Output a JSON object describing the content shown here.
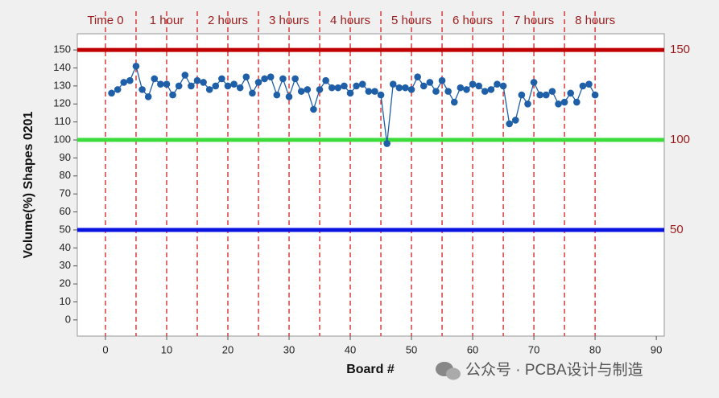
{
  "chart_data": {
    "type": "line",
    "x_label": "Board #",
    "y_label": "Volume(%) Shapes 0201",
    "x": [
      1,
      2,
      3,
      4,
      5,
      6,
      7,
      8,
      9,
      10,
      11,
      12,
      13,
      14,
      15,
      16,
      17,
      18,
      19,
      20,
      21,
      22,
      23,
      24,
      25,
      26,
      27,
      28,
      29,
      30,
      31,
      32,
      33,
      34,
      35,
      36,
      37,
      38,
      39,
      40,
      41,
      42,
      43,
      44,
      45,
      46,
      47,
      48,
      49,
      50,
      51,
      52,
      53,
      54,
      55,
      56,
      57,
      58,
      59,
      60,
      61,
      62,
      63,
      64,
      65,
      66,
      67,
      68,
      69,
      70,
      71,
      72,
      73,
      74,
      75,
      76,
      77,
      78,
      79,
      80
    ],
    "series": [
      {
        "color": "#1f5fa8",
        "values": [
          126,
          128,
          132,
          133,
          141,
          128,
          124,
          134,
          131,
          131,
          125,
          130,
          136,
          130,
          133,
          132,
          128,
          130,
          134,
          130,
          131,
          129,
          135,
          126,
          132,
          134,
          135,
          125,
          134,
          124,
          134,
          127,
          128,
          117,
          128,
          133,
          129,
          129,
          130,
          126,
          130,
          131,
          127,
          127,
          125,
          98,
          131,
          129,
          129,
          128,
          135,
          130,
          132,
          127,
          133,
          127,
          121,
          129,
          128,
          131,
          130,
          127,
          128,
          131,
          130,
          109,
          111,
          125,
          120,
          132,
          125,
          125,
          127,
          120,
          121,
          126,
          121,
          130,
          131,
          125
        ]
      }
    ],
    "xlim": [
      -4.6,
      91.3
    ],
    "ylim": [
      -9,
      159
    ],
    "xticks": [
      0,
      10,
      20,
      30,
      40,
      50,
      60,
      70,
      80,
      90
    ],
    "yticks": [
      0,
      10,
      20,
      30,
      40,
      50,
      60,
      70,
      80,
      90,
      100,
      110,
      120,
      130,
      140,
      150
    ],
    "reference_lines": [
      {
        "value": 150,
        "color": "#c00000"
      },
      {
        "value": 100,
        "color": "#3ddc3d"
      },
      {
        "value": 50,
        "color": "#0a14e0"
      }
    ],
    "dashed_lines_x": [
      0,
      5,
      10,
      15,
      20,
      25,
      30,
      35,
      40,
      45,
      50,
      55,
      60,
      65,
      70,
      75,
      80
    ],
    "time_markers": [
      {
        "x": 0,
        "label": "Time 0"
      },
      {
        "x": 10,
        "label": "1 hour"
      },
      {
        "x": 20,
        "label": "2 hours"
      },
      {
        "x": 30,
        "label": "3 hours"
      },
      {
        "x": 40,
        "label": "4 hours"
      },
      {
        "x": 50,
        "label": "5 hours"
      },
      {
        "x": 60,
        "label": "6 hours"
      },
      {
        "x": 70,
        "label": "7 hours"
      },
      {
        "x": 80,
        "label": "8 hours"
      }
    ],
    "watermark": "公众号 · PCBA设计与制造"
  }
}
